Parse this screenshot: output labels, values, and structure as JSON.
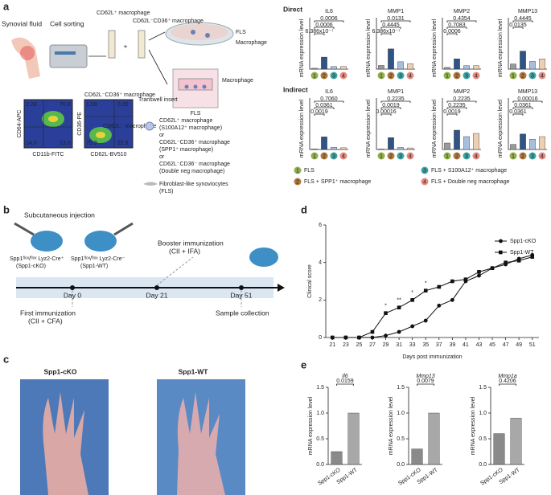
{
  "panels": [
    "a",
    "b",
    "c",
    "d",
    "e"
  ],
  "a": {
    "synovial": "Synovial fluid",
    "sorting": "Cell sorting",
    "m1": "CD62L⁺ macrophage",
    "m2": "CD62L⁻CD36⁺ macrophage",
    "fls": "FLS",
    "macrophage": "Macrophage",
    "transwell": "Transwell insert",
    "macrophage2": "Macrophage",
    "fls2": "FLS",
    "plot1": {
      "quadrants": [
        "2.28",
        "70.8",
        "14.0",
        "13.0"
      ],
      "xlabel": "CD11b-FITC",
      "ylabel": "CD64-APC"
    },
    "plot2_title": "CD62L⁻CD36⁺ macrophage",
    "plot2": {
      "quadrants": [
        "1.59",
        "0.30",
        "75.3",
        "22.8"
      ],
      "xlabel": "CD62L-BV510",
      "ylabel": "CD36-PE",
      "gate": "CD62L⁻ macrophage"
    },
    "key": [
      "CD62L⁺ macrophage",
      "(S100A12⁺ macrophage)",
      "or",
      "CD62L⁻CD36⁺ macrophage",
      "(SPP1⁺ macrophage)",
      "or",
      "CD62L⁻CD36⁻ macrophage",
      "(Double neg macrophage)"
    ],
    "fibro": [
      "Fibroblast-like synoviocytes",
      "(FLS)"
    ],
    "direct": "Direct",
    "indirect": "Indirect",
    "legend": [
      "FLS",
      "FLS + SPP1⁺ macrophage",
      "FLS + S100A12⁺ macrophage",
      "FLS + Double neg macrophage"
    ]
  },
  "b": {
    "injection": "Subcutaneous injection",
    "mouse1": "Spp1ᶠˡᵒˣ/ᶠˡᵒˣ Lyz2-Cre⁺",
    "mouse1b": "(Spp1-cKO)",
    "mouse2": "Spp1ᶠˡᵒˣ/ᶠˡᵒˣ Lyz2-Cre⁻",
    "mouse2b": "(Spp1-WT)",
    "booster": "Booster immunization",
    "booster2": "(CII + IFA)",
    "days": [
      "Day 0",
      "Day 21",
      "Day 51"
    ],
    "first": "First immunization",
    "first2": "(CII + CFA)",
    "sample": "Sample collection"
  },
  "c": {
    "left": "Spp1-cKO",
    "right": "Spp1-WT"
  },
  "chart_data": [
    {
      "type": "bar",
      "title": "IL6",
      "ylabel": "mRNA expression level",
      "categories": [
        "1",
        "2",
        "3",
        "4"
      ],
      "values": [
        1,
        14,
        3,
        3
      ],
      "ylim": [
        0,
        60
      ],
      "p_values": [
        "6.386x10⁻⁷",
        "0.0006",
        "0.0006"
      ]
    },
    {
      "type": "bar",
      "title": "MMP1",
      "ylabel": "mRNA expression level",
      "categories": [
        "1",
        "2",
        "3",
        "4"
      ],
      "values": [
        1,
        5.5,
        2,
        1.5
      ],
      "ylim": [
        0,
        14
      ],
      "p_values": [
        "6.386x10⁻⁷",
        "0.4445",
        "0.0131"
      ]
    },
    {
      "type": "bar",
      "title": "MMP2",
      "ylabel": "mRNA expression level",
      "categories": [
        "1",
        "2",
        "3",
        "4"
      ],
      "values": [
        1,
        6,
        2,
        2
      ],
      "ylim": [
        0,
        30
      ],
      "p_values": [
        "0.0006",
        "0.7083",
        "0.4354"
      ]
    },
    {
      "type": "bar",
      "title": "MMP13",
      "ylabel": "mRNA expression level",
      "categories": [
        "1",
        "2",
        "3",
        "4"
      ],
      "values": [
        1,
        3.5,
        1.5,
        2
      ],
      "ylim": [
        0,
        10
      ],
      "p_values": [
        "0.0135",
        "0.4445"
      ]
    },
    {
      "type": "bar",
      "title": "IL6",
      "ylabel": "mRNA expression level",
      "categories": [
        "1",
        "2",
        "3",
        "4"
      ],
      "values": [
        1,
        22,
        4,
        3
      ],
      "ylim": [
        0,
        90
      ],
      "p_values": [
        "0.0019",
        "0.0361",
        "0.7060"
      ]
    },
    {
      "type": "bar",
      "title": "MMP1",
      "ylabel": "mRNA expression level",
      "categories": [
        "1",
        "2",
        "3",
        "4"
      ],
      "values": [
        1,
        23,
        4,
        3
      ],
      "ylim": [
        0,
        100
      ],
      "p_values": [
        "0.00016",
        "0.0019",
        "0.2235"
      ]
    },
    {
      "type": "bar",
      "title": "MMP2",
      "ylabel": "mRNA expression level",
      "categories": [
        "1",
        "2",
        "3",
        "4"
      ],
      "values": [
        1,
        3,
        2,
        2.5
      ],
      "ylim": [
        0,
        8
      ],
      "p_values": [
        "0.0019",
        "0.2235",
        "0.2235"
      ]
    },
    {
      "type": "bar",
      "title": "MMP13",
      "ylabel": "mRNA expression level",
      "categories": [
        "1",
        "2",
        "3",
        "4"
      ],
      "values": [
        1,
        3,
        2,
        2.5
      ],
      "ylim": [
        0,
        10
      ],
      "p_values": [
        "0.0361",
        "0.0361",
        "0.00016"
      ]
    },
    {
      "type": "line",
      "xlabel": "Days post immunization",
      "ylabel": "Clinical score",
      "x": [
        21,
        23,
        25,
        27,
        29,
        31,
        33,
        35,
        37,
        39,
        41,
        43,
        45,
        47,
        49,
        51
      ],
      "xlim": [
        20,
        52
      ],
      "xticks": [
        21,
        23,
        25,
        27,
        29,
        31,
        33,
        35,
        37,
        39,
        41,
        43,
        45,
        47,
        49,
        51
      ],
      "ylim": [
        0,
        6
      ],
      "yticks": [
        0,
        2,
        4,
        6
      ],
      "series": [
        {
          "name": "Spp1-cKO",
          "marker": "circle",
          "values": [
            0,
            0,
            0,
            0,
            0.1,
            0.3,
            0.6,
            0.9,
            1.7,
            2.0,
            3.0,
            3.3,
            3.7,
            3.9,
            4.2,
            4.4
          ]
        },
        {
          "name": "Spp1-WT",
          "marker": "square",
          "values": [
            0,
            0,
            0,
            0.3,
            1.3,
            1.6,
            2.0,
            2.5,
            2.7,
            3.0,
            3.1,
            3.5,
            3.7,
            4.0,
            4.1,
            4.3
          ]
        }
      ],
      "annotations": [
        {
          "x": 29,
          "text": "*"
        },
        {
          "x": 31,
          "text": "**"
        },
        {
          "x": 33,
          "text": "*"
        },
        {
          "x": 35,
          "text": "*"
        }
      ]
    },
    {
      "type": "bar2",
      "title": "Il6",
      "ylabel": "mRNA expression level",
      "categories": [
        "Spp1-cKO",
        "Spp1-WT"
      ],
      "values": [
        0.25,
        1.0
      ],
      "ylim": [
        0,
        1.5
      ],
      "yticks": [
        {
          "value": 0,
          "label": "0.0"
        },
        0.5,
        {
          "value": 1,
          "label": "1.0"
        },
        1.5
      ],
      "p_values": [
        "0.0159"
      ],
      "colors": [
        "#8a8a8a",
        "#a8a8a8"
      ]
    },
    {
      "type": "bar2",
      "title": "Mmp13",
      "ylabel": "mRNA expression level",
      "categories": [
        "Spp1-cKO",
        "Spp1-WT"
      ],
      "values": [
        0.3,
        1.0
      ],
      "ylim": [
        0,
        1.5
      ],
      "yticks": [
        {
          "value": 0,
          "label": "0.0"
        },
        0.5,
        {
          "value": 1,
          "label": "1.0"
        },
        1.5
      ],
      "p_values": [
        "0.0079"
      ],
      "colors": [
        "#8a8a8a",
        "#a8a8a8"
      ]
    },
    {
      "type": "bar2",
      "title": "Mmp1a",
      "ylabel": "mRNA expression level",
      "categories": [
        "Spp1-cKO",
        "Spp1-WT"
      ],
      "values": [
        0.6,
        0.9
      ],
      "ylim": [
        0,
        1.5
      ],
      "yticks": [
        {
          "value": 0,
          "label": "0.0"
        },
        0.5,
        {
          "value": 1,
          "label": "1.0"
        },
        1.5
      ],
      "p_values": [
        "0.4206"
      ],
      "colors": [
        "#8a8a8a",
        "#a8a8a8"
      ]
    }
  ],
  "category_colors": [
    "#8fb04c",
    "#b07a3e",
    "#3fa3a3",
    "#e6897e"
  ],
  "bar_colors": [
    "#9a9a9a",
    "#2f5485",
    "#a7bfdc",
    "#edd0b4"
  ]
}
